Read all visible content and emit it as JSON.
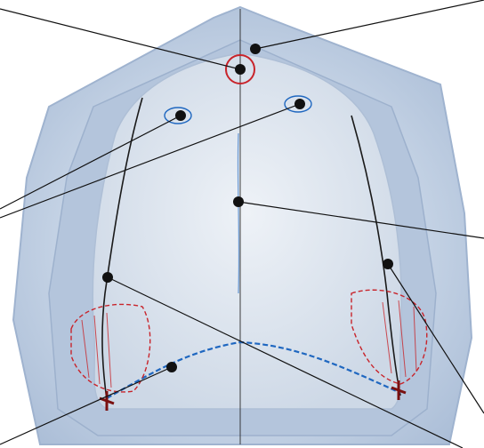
{
  "figure": {
    "subject": "dental-maxillary-cast",
    "background_color": "#ffffff",
    "cast_color": "#bcc9dc",
    "callout_color": "#111111",
    "marking_colors": {
      "black": "#1a1a1a",
      "red": "#c8242b",
      "blue": "#1f67c0"
    },
    "landmarks": [
      {
        "id": "incisive-papilla"
      },
      {
        "id": "frenum-notch"
      },
      {
        "id": "right-rugae"
      },
      {
        "id": "left-rugae"
      },
      {
        "id": "midpalatal-raphe"
      },
      {
        "id": "right-ridge-crest"
      },
      {
        "id": "left-ridge-crest"
      },
      {
        "id": "posterior-palatal-seal"
      },
      {
        "id": "hamular-notch"
      }
    ]
  }
}
